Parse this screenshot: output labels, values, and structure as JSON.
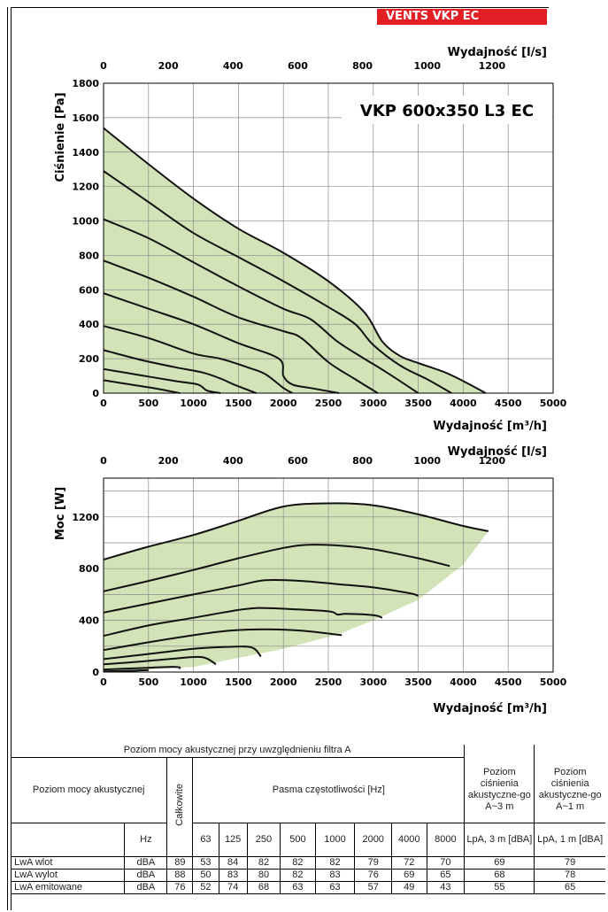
{
  "brand": {
    "label": "VENTS VKP EC",
    "color": "#e31e24"
  },
  "pressure_chart": {
    "title": "VKP 600x350 L3 EC",
    "ylabel": "Ciśnienie [Pa]",
    "xlabel_top": "Wydajność [l/s]",
    "xlabel_bottom": "Wydajność [m³/h]",
    "yticks": [
      "0",
      "200",
      "400",
      "600",
      "800",
      "1000",
      "1200",
      "1400",
      "1600",
      "1800"
    ],
    "xticks_bottom": [
      "0",
      "500",
      "1000",
      "1500",
      "2000",
      "2500",
      "3000",
      "3500",
      "4000",
      "4500",
      "5000"
    ],
    "xticks_top": [
      "0",
      "200",
      "400",
      "600",
      "800",
      "1000",
      "1200"
    ]
  },
  "power_chart": {
    "ylabel": "Moc [W]",
    "xlabel_top": "Wydajność [l/s]",
    "xlabel_bottom": "Wydajność [m³/h]",
    "yticks": [
      "0",
      "400",
      "800",
      "1200"
    ],
    "xticks_bottom": [
      "0",
      "500",
      "1000",
      "1500",
      "2000",
      "2500",
      "3000",
      "3500",
      "4000",
      "4500",
      "5000"
    ],
    "xticks_top": [
      "0",
      "200",
      "400",
      "600",
      "800",
      "1000",
      "1200"
    ]
  },
  "chart_data": [
    {
      "type": "line",
      "title": "VKP 600x350 L3 EC",
      "xlabel": "Wydajność [m³/h]",
      "ylabel": "Ciśnienie [Pa]",
      "xlim": [
        0,
        5000
      ],
      "ylim": [
        0,
        1800
      ],
      "secondary_x": {
        "label": "Wydajność [l/s]",
        "ticks": [
          0,
          200,
          400,
          600,
          800,
          1000,
          1200
        ]
      },
      "grid": true,
      "fill_color": "#d3e3b8",
      "series": [
        {
          "x": [
            0,
            500,
            1000,
            1500,
            2000,
            2500,
            2900,
            3100,
            3300,
            3500,
            3800,
            4000,
            4250
          ],
          "y": [
            1540,
            1330,
            1130,
            955,
            815,
            650,
            470,
            300,
            215,
            175,
            120,
            70,
            0
          ]
        },
        {
          "x": [
            0,
            500,
            1000,
            1500,
            2000,
            2500,
            2800,
            3000,
            3300,
            3600,
            3870
          ],
          "y": [
            1290,
            1110,
            930,
            790,
            650,
            500,
            400,
            280,
            160,
            80,
            0
          ]
        },
        {
          "x": [
            0,
            500,
            1000,
            1500,
            2000,
            2300,
            2600,
            2900,
            3150,
            3500
          ],
          "y": [
            1010,
            900,
            760,
            620,
            490,
            430,
            300,
            200,
            120,
            0
          ]
        },
        {
          "x": [
            0,
            500,
            1000,
            1500,
            2000,
            2200,
            2500,
            2800,
            3050
          ],
          "y": [
            770,
            670,
            560,
            440,
            360,
            320,
            180,
            80,
            0
          ]
        },
        {
          "x": [
            0,
            500,
            1000,
            1500,
            1950,
            2000,
            2100,
            2300,
            2620
          ],
          "y": [
            580,
            490,
            400,
            290,
            200,
            100,
            50,
            30,
            0
          ]
        },
        {
          "x": [
            0,
            500,
            1000,
            1300,
            1600,
            1800,
            2000,
            2100
          ],
          "y": [
            390,
            320,
            230,
            200,
            150,
            110,
            30,
            0
          ]
        },
        {
          "x": [
            0,
            400,
            800,
            1100,
            1300,
            1450,
            1700
          ],
          "y": [
            250,
            195,
            150,
            120,
            85,
            50,
            0
          ]
        },
        {
          "x": [
            0,
            400,
            800,
            1050,
            1150,
            1300
          ],
          "y": [
            140,
            105,
            70,
            50,
            15,
            0
          ]
        },
        {
          "x": [
            0,
            300,
            600,
            850
          ],
          "y": [
            75,
            50,
            25,
            0
          ]
        }
      ]
    },
    {
      "type": "line",
      "xlabel": "Wydajność [m³/h]",
      "ylabel": "Moc [W]",
      "xlim": [
        0,
        5000
      ],
      "ylim": [
        0,
        1500
      ],
      "secondary_x": {
        "label": "Wydajność [l/s]",
        "ticks": [
          0,
          200,
          400,
          600,
          800,
          1000,
          1200
        ]
      },
      "grid": true,
      "fill_color": "#d3e3b8",
      "series": [
        {
          "x": [
            0,
            500,
            1000,
            1500,
            2000,
            2500,
            3000,
            3500,
            4000,
            4280
          ],
          "y": [
            870,
            970,
            1060,
            1170,
            1280,
            1305,
            1290,
            1220,
            1130,
            1090
          ]
        },
        {
          "x": [
            0,
            500,
            1000,
            1500,
            2000,
            2300,
            2700,
            3000,
            3500,
            3850
          ],
          "y": [
            625,
            705,
            790,
            880,
            960,
            985,
            975,
            950,
            880,
            820
          ]
        },
        {
          "x": [
            0,
            500,
            1000,
            1500,
            1800,
            2200,
            2600,
            3000,
            3400,
            3500
          ],
          "y": [
            460,
            530,
            600,
            670,
            710,
            705,
            680,
            655,
            610,
            590
          ]
        },
        {
          "x": [
            0,
            500,
            1000,
            1500,
            1700,
            2000,
            2500,
            2600,
            2700,
            3000,
            3100
          ],
          "y": [
            280,
            360,
            420,
            480,
            495,
            490,
            470,
            445,
            450,
            440,
            420
          ]
        },
        {
          "x": [
            0,
            500,
            1000,
            1400,
            1800,
            2200,
            2650
          ],
          "y": [
            170,
            230,
            285,
            320,
            330,
            320,
            285
          ]
        },
        {
          "x": [
            0,
            500,
            1000,
            1400,
            1650,
            1750
          ],
          "y": [
            100,
            140,
            180,
            195,
            190,
            120
          ]
        },
        {
          "x": [
            0,
            400,
            800,
            1100,
            1250
          ],
          "y": [
            60,
            80,
            105,
            115,
            60
          ]
        },
        {
          "x": [
            0,
            400,
            800,
            850
          ],
          "y": [
            20,
            30,
            40,
            25
          ]
        },
        {
          "x": [
            0,
            300,
            500
          ],
          "y": [
            5,
            10,
            15
          ]
        }
      ],
      "envelope_bottom": {
        "x": [
          0,
          1000,
          2000,
          2600,
          3000,
          3500,
          4000,
          4280
        ],
        "y": [
          0,
          40,
          180,
          290,
          400,
          560,
          830,
          1090
        ]
      }
    },
    {
      "type": "table",
      "title": "Poziom mocy akustycznej przy uwzględnieniu filtra A",
      "columns": [
        "Hz",
        "Całkowite",
        "63",
        "125",
        "250",
        "500",
        "1000",
        "2000",
        "4000",
        "8000",
        "LpA, 3 m [dBA]",
        "LpA, 1 m [dBA]"
      ],
      "rows": [
        {
          "name": "LwA wlot",
          "values": [
            "dBA",
            "89",
            "53",
            "84",
            "82",
            "82",
            "82",
            "79",
            "72",
            "70",
            "69",
            "79"
          ]
        },
        {
          "name": "LwA wylot",
          "values": [
            "dBA",
            "88",
            "50",
            "83",
            "80",
            "82",
            "83",
            "76",
            "69",
            "65",
            "68",
            "78"
          ]
        },
        {
          "name": "LwA emitowane",
          "values": [
            "dBA",
            "76",
            "52",
            "74",
            "68",
            "63",
            "63",
            "57",
            "49",
            "43",
            "55",
            "65"
          ]
        }
      ]
    }
  ],
  "table": {
    "caption": "Poziom mocy akustycznej przy uwzględnieniu filtra A",
    "row_header": "Poziom mocy akustycznej",
    "total_label": "Całkowite",
    "bands_label": "Pasma częstotliwości [Hz]",
    "pressure3_label": "Poziom ciśnienia akustyczne-go A~3 m",
    "pressure1_label": "Poziom ciśnienia akustyczne-go A~1 m",
    "hz": "Hz",
    "bands": [
      "63",
      "125",
      "250",
      "500",
      "1000",
      "2000",
      "4000",
      "8000"
    ],
    "lpa3": "LpA, 3 m [dBA]",
    "lpa1": "LpA, 1 m [dBA]",
    "rows": [
      {
        "name": "LwA wlot",
        "unit": "dBA",
        "total": "89",
        "bands": [
          "53",
          "84",
          "82",
          "82",
          "82",
          "79",
          "72",
          "70"
        ],
        "lpa3": "69",
        "lpa1": "79"
      },
      {
        "name": "LwA wylot",
        "unit": "dBA",
        "total": "88",
        "bands": [
          "50",
          "83",
          "80",
          "82",
          "83",
          "76",
          "69",
          "65"
        ],
        "lpa3": "68",
        "lpa1": "78"
      },
      {
        "name": "LwA emitowane",
        "unit": "dBA",
        "total": "76",
        "bands": [
          "52",
          "74",
          "68",
          "63",
          "63",
          "57",
          "49",
          "43"
        ],
        "lpa3": "55",
        "lpa1": "65"
      }
    ]
  }
}
